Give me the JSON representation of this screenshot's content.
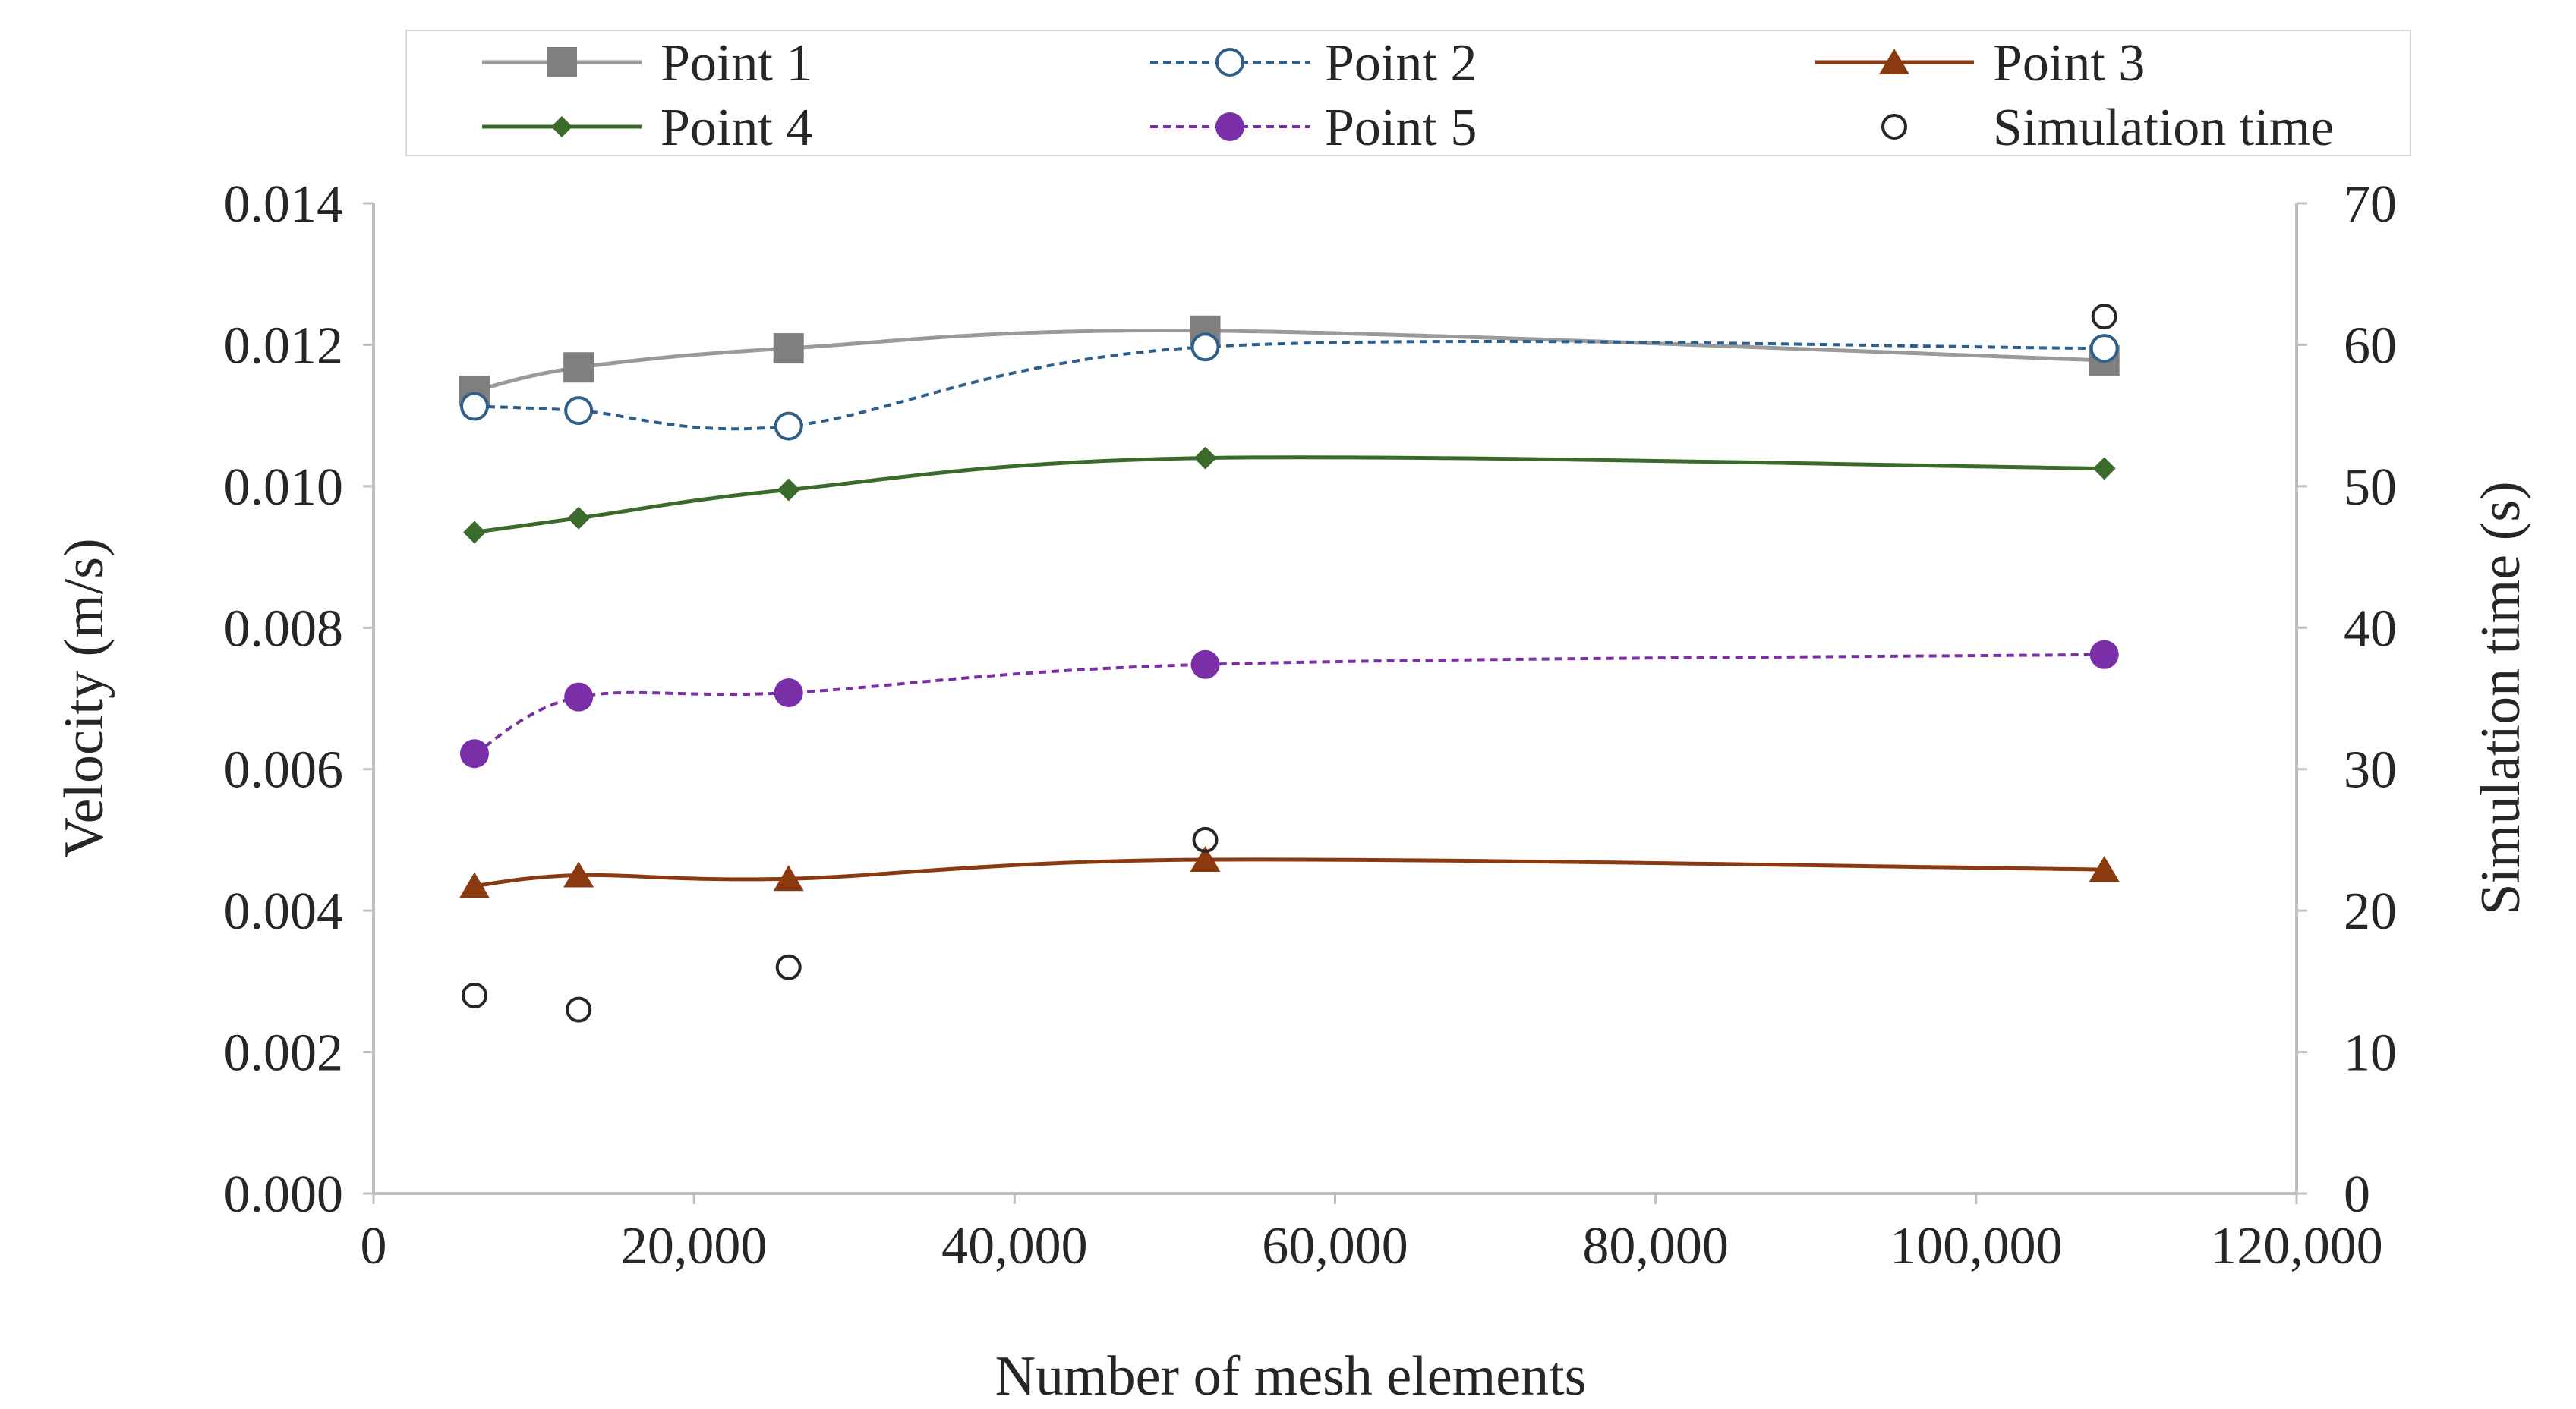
{
  "chart_data": {
    "type": "line",
    "title": "",
    "xlabel": "Number of mesh elements",
    "ylabel": "Velocity (m/s)",
    "y2label": "Simulation  time (s)",
    "xlim": [
      0,
      120000
    ],
    "ylim": [
      0,
      0.014
    ],
    "y2lim": [
      0,
      70
    ],
    "x_ticks": [
      0,
      20000,
      40000,
      60000,
      80000,
      100000,
      120000
    ],
    "x_tick_labels": [
      "0",
      "20,000",
      "40,000",
      "60,000",
      "80,000",
      "100,000",
      "120,000"
    ],
    "y_ticks": [
      0,
      0.002,
      0.004,
      0.006,
      0.008,
      0.01,
      0.012,
      0.014
    ],
    "y_tick_labels": [
      "0.000",
      "0.002",
      "0.004",
      "0.006",
      "0.008",
      "0.010",
      "0.012",
      "0.014"
    ],
    "y2_ticks": [
      0,
      10,
      20,
      30,
      40,
      50,
      60,
      70
    ],
    "y2_tick_labels": [
      "0",
      "10",
      "20",
      "30",
      "40",
      "50",
      "60",
      "70"
    ],
    "grid": false,
    "legend_position": "top",
    "x": [
      6300,
      12800,
      25900,
      51900,
      108000
    ],
    "series": [
      {
        "name": "Point 1",
        "axis": "left",
        "marker": "square",
        "line": "solid",
        "color": "#7f7f7f",
        "values": [
          0.01135,
          0.01168,
          0.01195,
          0.0122,
          0.01178
        ]
      },
      {
        "name": "Point 2",
        "axis": "left",
        "marker": "circle-open",
        "line": "dashed",
        "color": "#2e5f8a",
        "values": [
          0.01113,
          0.01107,
          0.01085,
          0.01197,
          0.01195
        ]
      },
      {
        "name": "Point 3",
        "axis": "left",
        "marker": "triangle",
        "line": "solid",
        "color": "#8b3a0f",
        "values": [
          0.00435,
          0.0045,
          0.00445,
          0.00472,
          0.00458
        ]
      },
      {
        "name": "Point 4",
        "axis": "left",
        "marker": "diamond",
        "line": "solid",
        "color": "#3a6b2a",
        "values": [
          0.00935,
          0.00955,
          0.00995,
          0.0104,
          0.01025
        ]
      },
      {
        "name": "Point 5",
        "axis": "left",
        "marker": "circle-filled",
        "line": "dashed",
        "color": "#7a2fa8",
        "values": [
          0.00622,
          0.00702,
          0.00708,
          0.00748,
          0.00762
        ]
      },
      {
        "name": "Simulation time",
        "axis": "right",
        "marker": "circle-open",
        "line": "none",
        "color": "#262626",
        "values": [
          14,
          13,
          16,
          25,
          62
        ]
      }
    ]
  }
}
